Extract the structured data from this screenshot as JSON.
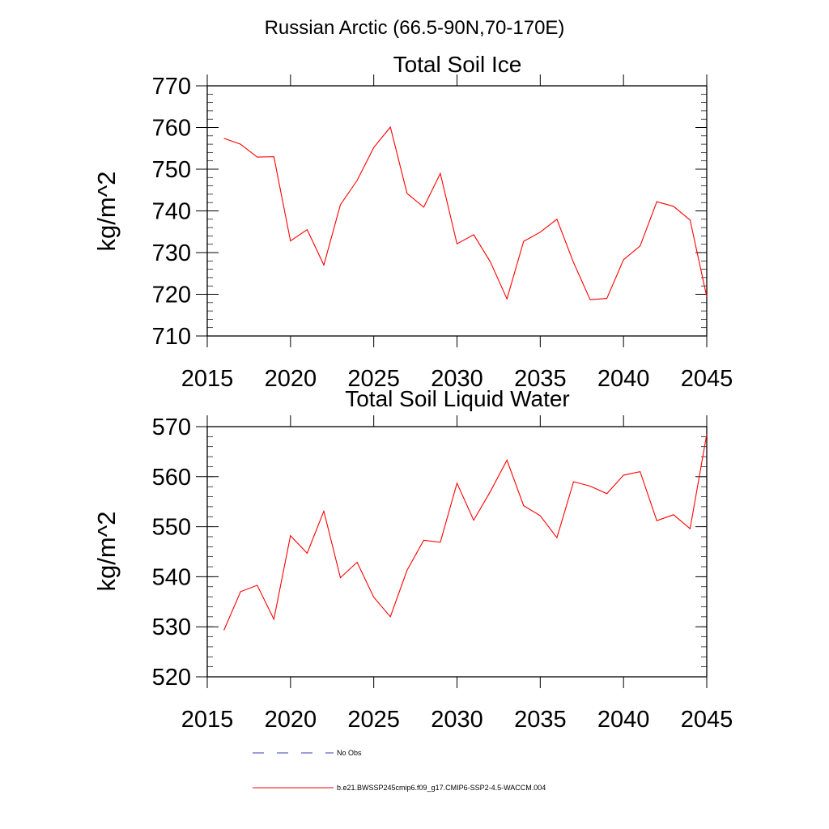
{
  "figure_title": "Russian Arctic (66.5-90N,70-170E)",
  "colors": {
    "series": "#ff0000",
    "no_obs": "#3b3bb0",
    "axis": "#000000"
  },
  "legend": {
    "no_obs_label": "No Obs",
    "model_label": "b.e21.BWSSP245cmip6.f09_g17.CMIP6-SSP2-4.5-WACCM.004"
  },
  "chart_data": [
    {
      "type": "line",
      "title": "Total Soil Ice",
      "xlabel": "",
      "ylabel": "kg/m^2",
      "xlim": [
        2015,
        2045
      ],
      "ylim": [
        710,
        770
      ],
      "xticks": [
        2015,
        2020,
        2025,
        2030,
        2035,
        2040,
        2045
      ],
      "yticks": [
        710,
        720,
        730,
        740,
        750,
        760,
        770
      ],
      "x": [
        2016,
        2017,
        2018,
        2019,
        2020,
        2021,
        2022,
        2023,
        2024,
        2025,
        2026,
        2027,
        2028,
        2029,
        2030,
        2031,
        2032,
        2033,
        2034,
        2035,
        2036,
        2037,
        2038,
        2039,
        2040,
        2041,
        2042,
        2043,
        2044,
        2045
      ],
      "series": [
        {
          "name": "b.e21.BWSSP245cmip6.f09_g17.CMIP6-SSP2-4.5-WACCM.004",
          "values": [
            757.4,
            756.0,
            752.9,
            753.0,
            732.8,
            735.5,
            727.0,
            741.5,
            747.3,
            755.2,
            760.1,
            744.2,
            740.9,
            749.0,
            732.1,
            734.3,
            727.8,
            718.9,
            732.7,
            734.9,
            738.0,
            727.6,
            718.7,
            719.0,
            728.3,
            731.6,
            742.2,
            741.1,
            737.8,
            719.4
          ]
        }
      ]
    },
    {
      "type": "line",
      "title": "Total Soil Liquid Water",
      "xlabel": "",
      "ylabel": "kg/m^2",
      "xlim": [
        2015,
        2045
      ],
      "ylim": [
        520,
        570
      ],
      "xticks": [
        2015,
        2020,
        2025,
        2030,
        2035,
        2040,
        2045
      ],
      "yticks": [
        520,
        530,
        540,
        550,
        560,
        570
      ],
      "x": [
        2016,
        2017,
        2018,
        2019,
        2020,
        2021,
        2022,
        2023,
        2024,
        2025,
        2026,
        2027,
        2028,
        2029,
        2030,
        2031,
        2032,
        2033,
        2034,
        2035,
        2036,
        2037,
        2038,
        2039,
        2040,
        2041,
        2042,
        2043,
        2044,
        2045
      ],
      "series": [
        {
          "name": "b.e21.BWSSP245cmip6.f09_g17.CMIP6-SSP2-4.5-WACCM.004",
          "values": [
            529.3,
            537.0,
            538.3,
            531.5,
            548.2,
            544.7,
            553.1,
            539.8,
            542.9,
            535.9,
            532.0,
            541.3,
            547.3,
            546.9,
            558.7,
            551.3,
            557.0,
            563.3,
            554.2,
            552.2,
            547.8,
            559.0,
            558.1,
            556.6,
            560.3,
            561.0,
            551.2,
            552.4,
            549.6,
            568.5
          ]
        }
      ]
    }
  ]
}
